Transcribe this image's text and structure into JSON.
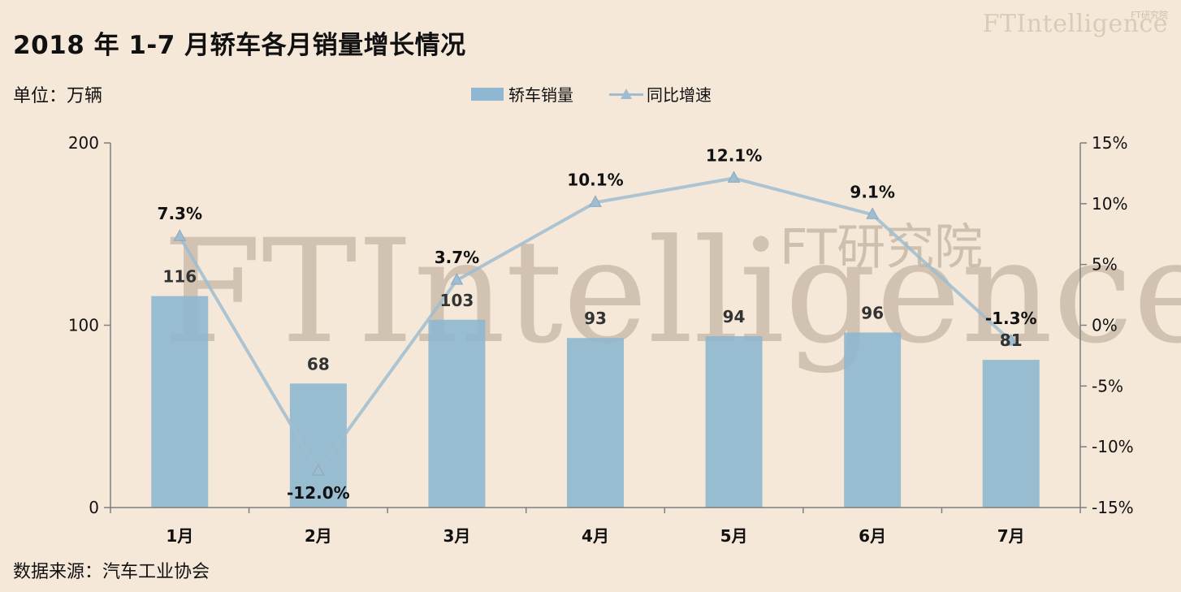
{
  "title": "2018 年 1-7 月轿车各月销量增长情况",
  "unit_label": "单位：万辆",
  "source_label": "数据来源：汽车工业协会",
  "brand": {
    "name": "FTIntelligence",
    "cn": "FT研究院"
  },
  "watermark": {
    "main": "FTIntelligence",
    "sub": "FT研究院"
  },
  "colors": {
    "bar": "#8fb7cf",
    "line": "#9fbdd0",
    "background": "#f5e8d8",
    "axis": "#7f7f7f"
  },
  "chart_data": {
    "type": "bar",
    "categories": [
      "1月",
      "2月",
      "3月",
      "4月",
      "5月",
      "6月",
      "7月"
    ],
    "series": [
      {
        "name": "轿车销量",
        "type": "bar",
        "axis": "left",
        "values": [
          116,
          68,
          103,
          93,
          94,
          96,
          81
        ]
      },
      {
        "name": "同比增速",
        "type": "line",
        "axis": "right",
        "values": [
          7.3,
          -12.0,
          3.7,
          10.1,
          12.1,
          9.1,
          -1.3
        ],
        "labels": [
          "7.3%",
          "-12.0%",
          "3.7%",
          "10.1%",
          "12.1%",
          "9.1%",
          "-1.3%"
        ]
      }
    ],
    "y_left": {
      "range": [
        0,
        200
      ],
      "ticks": [
        0,
        100,
        200
      ],
      "tick_labels": [
        "0",
        "100",
        "200"
      ]
    },
    "y_right": {
      "range": [
        -15,
        15
      ],
      "ticks": [
        15,
        10,
        5,
        0,
        -5,
        -10,
        -15
      ],
      "tick_labels": [
        "15%",
        "10%",
        "5%",
        "0%",
        "-5%",
        "-10%",
        "-15%"
      ]
    },
    "legend": "top-center",
    "grid": false
  }
}
